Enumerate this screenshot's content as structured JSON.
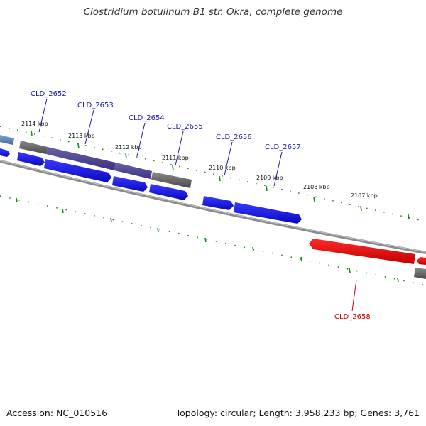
{
  "title": "Clostridium botulinum B1 str. Okra, complete genome",
  "footer": {
    "accession": "Accession: NC_010516",
    "summary": "Topology: circular; Length: 3,958,233 bp; Genes: 3,761"
  },
  "colors": {
    "forward_gene": "#1010e0",
    "reverse_gene": "#ee0000",
    "gene_label_blue": "#1a1aa8",
    "gene_label_red": "#cc0000",
    "tick_green": "#1a8a1a",
    "backbone": "#888888"
  },
  "scale": {
    "ticks": [
      "2114 kbp",
      "2113 kbp",
      "2112 kbp",
      "2111 kbp",
      "2110 kbp",
      "2109 kbp",
      "2108 kbp",
      "2107 kbp"
    ]
  },
  "genes": [
    {
      "id": "CLD_2652",
      "strand": "+"
    },
    {
      "id": "CLD_2653",
      "strand": "+"
    },
    {
      "id": "CLD_2654",
      "strand": "+"
    },
    {
      "id": "CLD_2655",
      "strand": "+"
    },
    {
      "id": "CLD_2656",
      "strand": "+"
    },
    {
      "id": "CLD_2657",
      "strand": "+"
    },
    {
      "id": "CLD_2658",
      "strand": "-"
    }
  ]
}
